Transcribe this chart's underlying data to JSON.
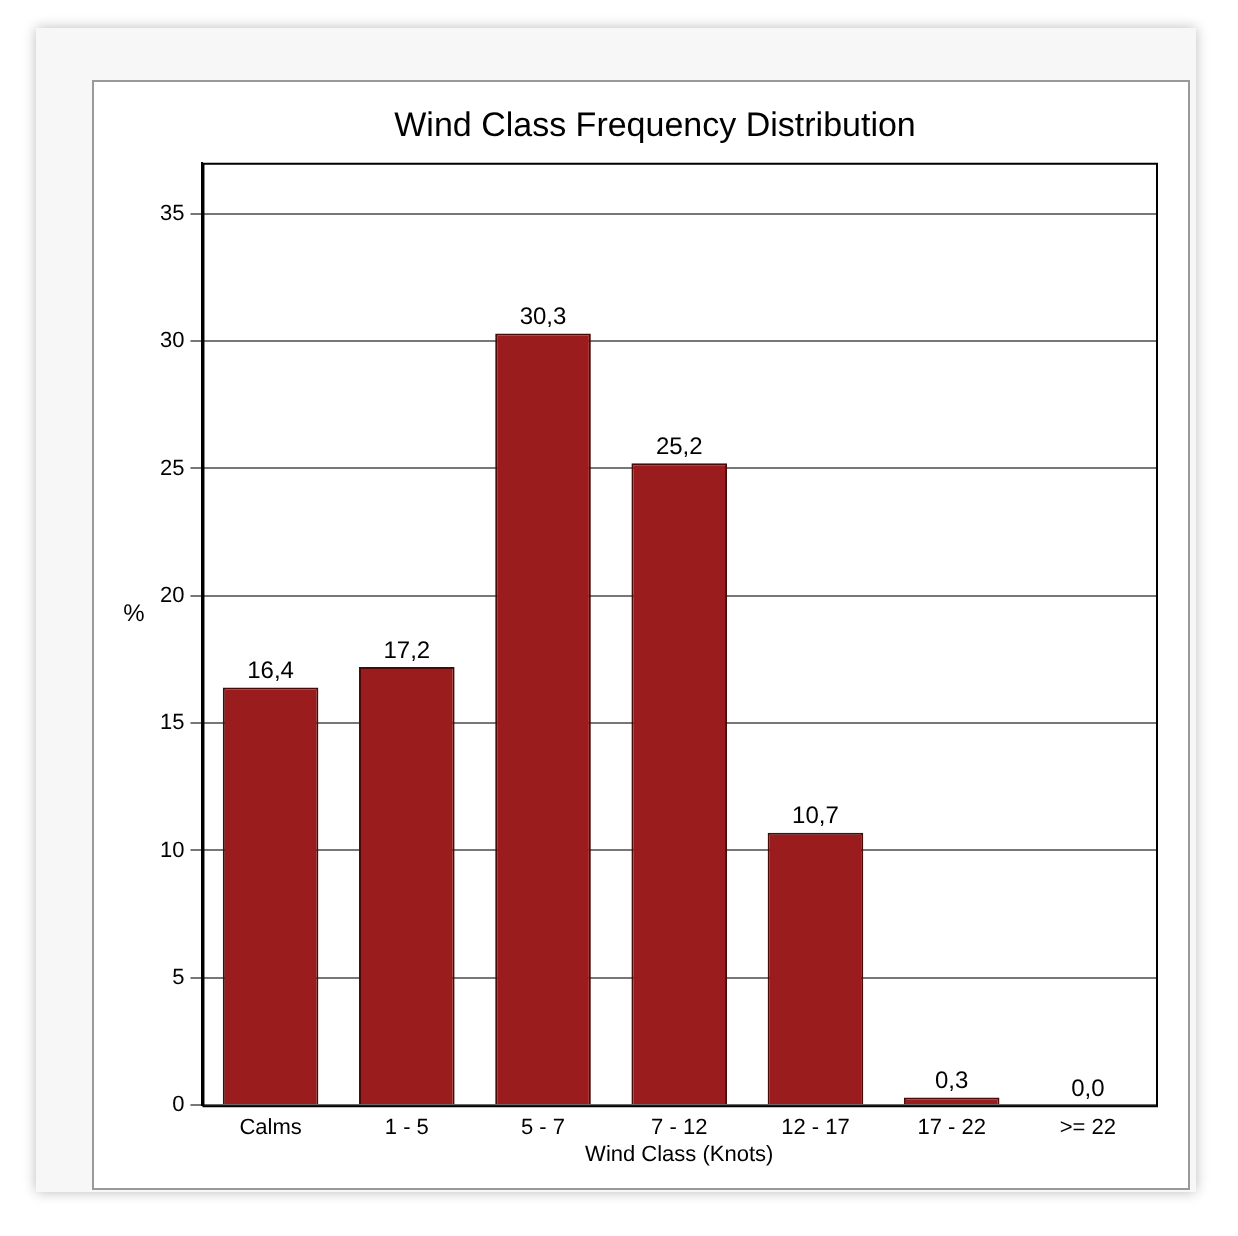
{
  "chart_data": {
    "type": "bar",
    "title": "Wind Class Frequency Distribution",
    "xlabel": "Wind Class (Knots)",
    "ylabel": "%",
    "categories": [
      "Calms",
      "1 - 5",
      "5 - 7",
      "7 - 12",
      "12 - 17",
      "17 - 22",
      ">= 22"
    ],
    "values": [
      16.4,
      17.2,
      30.3,
      25.2,
      10.7,
      0.3,
      0.0
    ],
    "value_labels": [
      "16,4",
      "17,2",
      "30,3",
      "25,2",
      "10,7",
      "0,3",
      "0,0"
    ],
    "color": "#9b1c1c",
    "ylim": [
      0,
      37
    ],
    "yticks": [
      0,
      5,
      10,
      15,
      20,
      25,
      30,
      35
    ],
    "grid": "y"
  }
}
